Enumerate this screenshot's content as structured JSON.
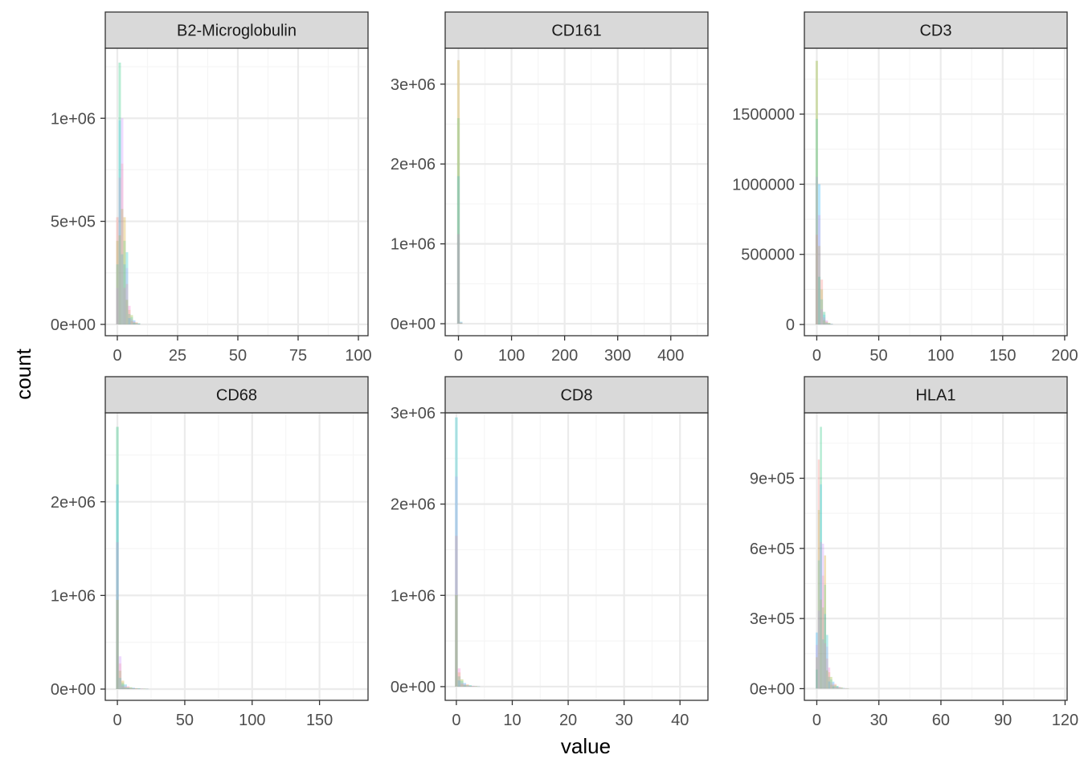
{
  "chart_data": {
    "type": "bar",
    "subtype": "faceted-histogram",
    "xlabel": "value",
    "ylabel": "count",
    "legend": "none",
    "grid": true,
    "colors": {
      "strip_bg": "#d9d9d9",
      "panel_border": "#333333",
      "grid_major": "#ebebeb",
      "grid_minor": "#f5f5f5",
      "series_palette": [
        "#f8766d",
        "#cd9600",
        "#7cae00",
        "#00be67",
        "#00bfc4",
        "#00a9ff",
        "#c77cff",
        "#ff61cc"
      ]
    },
    "facets": [
      {
        "title": "B2-Microglobulin",
        "xlim": [
          -5,
          104
        ],
        "ylim": [
          -55000,
          1340000
        ],
        "x_ticks": [
          0,
          25,
          50,
          75,
          100
        ],
        "x_tick_labels": [
          "0",
          "25",
          "50",
          "75",
          "100"
        ],
        "y_ticks": [
          0,
          500000,
          1000000
        ],
        "y_tick_labels": [
          "0e+00",
          "5e+05",
          "1e+06"
        ],
        "bin_width": 1,
        "bin_starts": [
          -0.5,
          0.5,
          1.5,
          2.5,
          3.5,
          4.5,
          5.5,
          6.5,
          7.5,
          8.5
        ],
        "bin_counts": [
          520000,
          1270000,
          1000000,
          520000,
          350000,
          90000,
          45000,
          20000,
          10000,
          5000
        ]
      },
      {
        "title": "CD161",
        "xlim": [
          -25,
          470
        ],
        "ylim": [
          -150000,
          3450000
        ],
        "x_ticks": [
          0,
          100,
          200,
          300,
          400
        ],
        "x_tick_labels": [
          "0",
          "100",
          "200",
          "300",
          "400"
        ],
        "y_ticks": [
          0,
          1000000,
          2000000,
          3000000
        ],
        "y_tick_labels": [
          "0e+00",
          "1e+06",
          "2e+06",
          "3e+06"
        ],
        "bin_width": 5,
        "bin_starts": [
          -2.5,
          2.5
        ],
        "bin_counts": [
          3300000,
          25000
        ]
      },
      {
        "title": "CD3",
        "xlim": [
          -10,
          202
        ],
        "ylim": [
          -80000,
          1970000
        ],
        "x_ticks": [
          0,
          50,
          100,
          150,
          200
        ],
        "x_tick_labels": [
          "0",
          "50",
          "100",
          "150",
          "200"
        ],
        "y_ticks": [
          0,
          500000,
          1000000,
          1500000
        ],
        "y_tick_labels": [
          "0",
          "500000",
          "1000000",
          "1500000"
        ],
        "bin_width": 2,
        "bin_starts": [
          -1,
          1,
          3,
          5,
          7,
          9,
          11
        ],
        "bin_counts": [
          1880000,
          1000000,
          320000,
          90000,
          30000,
          12000,
          5000
        ]
      },
      {
        "title": "CD68",
        "xlim": [
          -9,
          186
        ],
        "ylim": [
          -120000,
          2950000
        ],
        "x_ticks": [
          0,
          50,
          100,
          150
        ],
        "x_tick_labels": [
          "0",
          "50",
          "100",
          "150"
        ],
        "y_ticks": [
          0,
          1000000,
          2000000
        ],
        "y_tick_labels": [
          "0e+00",
          "1e+06",
          "2e+06"
        ],
        "bin_width": 2,
        "bin_starts": [
          -1,
          1,
          3,
          5,
          7,
          9,
          11,
          13,
          15,
          17,
          19,
          21
        ],
        "bin_counts": [
          2800000,
          350000,
          90000,
          50000,
          30000,
          20000,
          15000,
          10000,
          8000,
          6000,
          4000,
          3000
        ]
      },
      {
        "title": "CD8",
        "xlim": [
          -2,
          45
        ],
        "ylim": [
          -150000,
          3000000
        ],
        "x_ticks": [
          0,
          10,
          20,
          30,
          40
        ],
        "x_tick_labels": [
          "0",
          "10",
          "20",
          "30",
          "40"
        ],
        "y_ticks": [
          0,
          1000000,
          2000000,
          3000000
        ],
        "y_tick_labels": [
          "0e+00",
          "1e+06",
          "2e+06",
          "3e+06"
        ],
        "bin_width": 0.5,
        "bin_starts": [
          -0.25,
          0.25,
          0.75,
          1.25,
          1.75,
          2.25,
          2.75,
          3.25,
          3.75
        ],
        "bin_counts": [
          2950000,
          200000,
          80000,
          40000,
          25000,
          15000,
          10000,
          6000,
          3000
        ]
      },
      {
        "title": "HLA1",
        "xlim": [
          -6,
          121
        ],
        "ylim": [
          -50000,
          1180000
        ],
        "x_ticks": [
          0,
          30,
          60,
          90,
          120
        ],
        "x_tick_labels": [
          "0",
          "30",
          "60",
          "90",
          "120"
        ],
        "y_ticks": [
          0,
          300000,
          600000,
          900000
        ],
        "y_tick_labels": [
          "0e+00",
          "3e+05",
          "6e+05",
          "9e+05"
        ],
        "bin_width": 1,
        "bin_starts": [
          -0.5,
          0.5,
          1.5,
          2.5,
          3.5,
          4.5,
          5.5,
          6.5,
          7.5,
          8.5,
          9.5,
          10.5,
          11.5,
          12.5,
          13.5,
          14.5
        ],
        "bin_counts": [
          240000,
          980000,
          1120000,
          620000,
          570000,
          230000,
          90000,
          50000,
          30000,
          20000,
          12000,
          8000,
          5000,
          3000,
          2000,
          1000
        ]
      }
    ]
  }
}
